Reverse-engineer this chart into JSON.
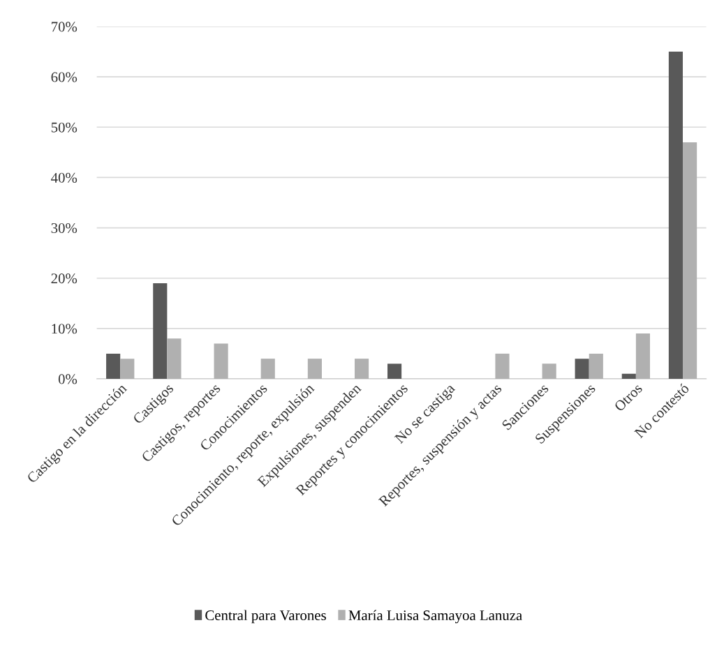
{
  "chart_data": {
    "type": "bar",
    "categories": [
      "Castigo en la dirección",
      "Castigos",
      "Castigos, reportes",
      "Conocimientos",
      "Conocimiento, reporte, expulsión",
      "Expulsiones, suspenden",
      "Reportes y conocimientos",
      "No se castiga",
      "Reportes, suspensión y actas",
      "Sanciones",
      "Suspensiones",
      "Otros",
      "No contestó"
    ],
    "series": [
      {
        "name": "Central para Varones",
        "color": "#595959",
        "values": [
          5,
          19,
          0,
          0,
          0,
          0,
          3,
          0,
          0,
          0,
          4,
          1,
          65
        ]
      },
      {
        "name": "María Luisa Samayoa Lanuza",
        "color": "#b0b0b0",
        "values": [
          4,
          8,
          7,
          4,
          4,
          4,
          0,
          0,
          5,
          3,
          5,
          9,
          47
        ]
      }
    ],
    "ylim": [
      0,
      70
    ],
    "yticks": [
      {
        "value": 0,
        "label": "0%"
      },
      {
        "value": 10,
        "label": "10%"
      },
      {
        "value": 20,
        "label": "20%"
      },
      {
        "value": 30,
        "label": "30%"
      },
      {
        "value": 40,
        "label": "40%"
      },
      {
        "value": 50,
        "label": "50%"
      },
      {
        "value": 60,
        "label": "60%"
      },
      {
        "value": 70,
        "label": "70%"
      }
    ],
    "grid": "y",
    "legend": "bottom"
  }
}
